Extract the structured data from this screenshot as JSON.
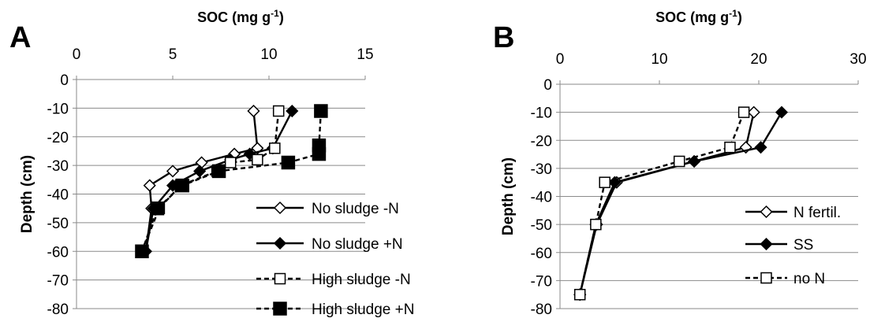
{
  "chart_data": [
    {
      "panel_label": "A",
      "type": "line",
      "orientation": "profile",
      "xlabel_main": "SOC (mg g",
      "xlabel_sup": "-1",
      "xlabel_end": ")",
      "ylabel": "Depth (cm)",
      "xlim": [
        0,
        15
      ],
      "ylim": [
        -80,
        0
      ],
      "xticks": [
        "0",
        "5",
        "10",
        "15"
      ],
      "yticks": [
        "0",
        "-10",
        "-20",
        "-30",
        "-40",
        "-50",
        "-60",
        "-70",
        "-80"
      ],
      "xaxis_position": "top",
      "grid": "horizontal",
      "legend_position": "bottom-right",
      "series": [
        {
          "name": "No sludge -N",
          "marker": "diamond-open",
          "dashed": false,
          "x": [
            9.2,
            9.4,
            8.2,
            6.5,
            5.0,
            3.8,
            3.9,
            3.6
          ],
          "y": [
            -11,
            -24,
            -26,
            -29,
            -32,
            -37,
            -45,
            -60
          ]
        },
        {
          "name": "No sludge +N",
          "marker": "diamond-filled",
          "dashed": false,
          "x": [
            11.2,
            10.2,
            9.0,
            8.0,
            6.4,
            5.0,
            4.0,
            3.6
          ],
          "y": [
            -11,
            -24,
            -26,
            -28,
            -32,
            -37,
            -45,
            -60
          ]
        },
        {
          "name": "High sludge -N",
          "marker": "square-open",
          "dashed": true,
          "x": [
            10.5,
            10.3,
            9.4,
            8.0,
            7.3,
            5.4,
            4.3,
            3.4
          ],
          "y": [
            -11,
            -24,
            -28,
            -29,
            -32,
            -37,
            -45,
            -60
          ]
        },
        {
          "name": "High sludge +N",
          "marker": "square-filled",
          "dashed": true,
          "x": [
            12.7,
            12.6,
            12.6,
            11.0,
            7.4,
            5.5,
            4.2,
            3.4
          ],
          "y": [
            -11,
            -23,
            -26,
            -29,
            -32,
            -37,
            -45,
            -60
          ]
        }
      ]
    },
    {
      "panel_label": "B",
      "type": "line",
      "orientation": "profile",
      "xlabel_main": "SOC (mg g",
      "xlabel_sup": "-1",
      "xlabel_end": ")",
      "ylabel": "Depth (cm)",
      "xlim": [
        0,
        30
      ],
      "ylim": [
        -80,
        0
      ],
      "xticks": [
        "0",
        "10",
        "20",
        "30"
      ],
      "yticks": [
        "0",
        "-10",
        "-20",
        "-30",
        "-40",
        "-50",
        "-60",
        "-70",
        "-80"
      ],
      "xaxis_position": "top",
      "grid": "horizontal",
      "legend_position": "bottom-right",
      "series": [
        {
          "name": "N fertil.",
          "marker": "diamond-open",
          "dashed": false,
          "x": [
            19.5,
            18.7,
            13.5,
            5.7,
            3.7,
            2.0
          ],
          "y": [
            -10,
            -22.5,
            -27.5,
            -35,
            -50,
            -75
          ]
        },
        {
          "name": "SS",
          "marker": "diamond-filled",
          "dashed": false,
          "x": [
            22.3,
            20.2,
            13.5,
            5.5,
            3.6,
            2.0
          ],
          "y": [
            -10,
            -22.5,
            -27.5,
            -35,
            -50,
            -75
          ]
        },
        {
          "name": "no N",
          "marker": "square-open",
          "dashed": true,
          "x": [
            18.5,
            17.1,
            12.0,
            4.5,
            3.6,
            2.0
          ],
          "y": [
            -10,
            -22.5,
            -27.5,
            -35,
            -50,
            -75
          ]
        }
      ]
    }
  ]
}
